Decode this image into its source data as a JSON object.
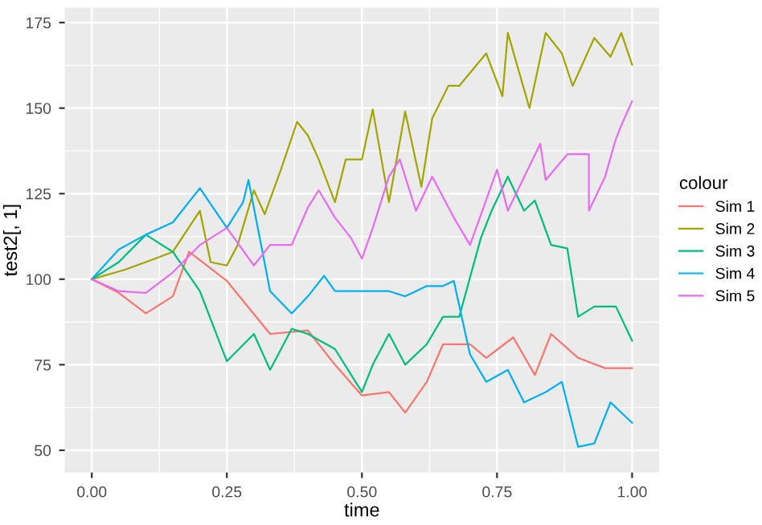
{
  "chart_data": {
    "type": "line",
    "xlabel": "time",
    "ylabel": "test2[, 1]",
    "legend_title": "colour",
    "legend": "right",
    "grid": true,
    "xlim": [
      -0.05,
      1.05
    ],
    "xticks": [
      {
        "value": 0,
        "label": "0.00"
      },
      {
        "value": 0.25,
        "label": "0.25"
      },
      {
        "value": 0.5,
        "label": "0.50"
      },
      {
        "value": 0.75,
        "label": "0.75"
      },
      {
        "value": 1,
        "label": "1.00"
      }
    ],
    "ylim": [
      43.5,
      179.3
    ],
    "yticks": [
      50,
      75,
      100,
      125,
      150,
      175
    ],
    "series": [
      {
        "name": "Sim 1",
        "color": "#f8766d",
        "x": [
          0,
          0.05,
          0.1,
          0.15,
          0.18,
          0.25,
          0.33,
          0.4,
          0.45,
          0.5,
          0.55,
          0.58,
          0.62,
          0.65,
          0.7,
          0.73,
          0.78,
          0.82,
          0.85,
          0.9,
          0.95,
          1.0
        ],
        "values": [
          100,
          96,
          90,
          95,
          108,
          99.5,
          84,
          85,
          75,
          66,
          67,
          61,
          70,
          81,
          81,
          77,
          83,
          72,
          84,
          77,
          74,
          74
        ]
      },
      {
        "name": "Sim 2",
        "color": "#a3a500",
        "x": [
          0,
          0.06,
          0.1,
          0.15,
          0.2,
          0.22,
          0.25,
          0.27,
          0.3,
          0.32,
          0.35,
          0.38,
          0.4,
          0.42,
          0.45,
          0.47,
          0.5,
          0.52,
          0.55,
          0.58,
          0.61,
          0.63,
          0.66,
          0.68,
          0.73,
          0.76,
          0.77,
          0.81,
          0.84,
          0.87,
          0.89,
          0.93,
          0.96,
          0.98,
          1.0
        ],
        "values": [
          100,
          102.7,
          105,
          108,
          120,
          105,
          104,
          110,
          126,
          119,
          132,
          146,
          142,
          135,
          122.5,
          135,
          135,
          149.6,
          122.5,
          149,
          127,
          147,
          156.5,
          156.5,
          166,
          153.5,
          172,
          150,
          172,
          166,
          156.5,
          170.5,
          165,
          172,
          162.7
        ]
      },
      {
        "name": "Sim 3",
        "color": "#00bf7d",
        "x": [
          0,
          0.05,
          0.1,
          0.15,
          0.2,
          0.25,
          0.3,
          0.33,
          0.37,
          0.4,
          0.45,
          0.5,
          0.52,
          0.55,
          0.58,
          0.62,
          0.65,
          0.68,
          0.72,
          0.74,
          0.77,
          0.8,
          0.82,
          0.85,
          0.88,
          0.9,
          0.93,
          0.97,
          1.0
        ],
        "values": [
          100,
          105,
          113,
          108,
          96.5,
          76,
          84,
          73.5,
          85.5,
          84,
          79.6,
          67,
          75,
          84,
          75,
          81,
          89,
          89,
          112,
          120,
          130,
          120,
          123,
          110,
          109,
          89,
          92,
          92,
          82
        ]
      },
      {
        "name": "Sim 4",
        "color": "#00b0f6",
        "x": [
          0,
          0.05,
          0.1,
          0.15,
          0.2,
          0.25,
          0.28,
          0.29,
          0.33,
          0.37,
          0.4,
          0.43,
          0.45,
          0.5,
          0.55,
          0.58,
          0.62,
          0.65,
          0.67,
          0.7,
          0.73,
          0.77,
          0.8,
          0.84,
          0.87,
          0.9,
          0.93,
          0.96,
          1.0
        ],
        "values": [
          100,
          108.7,
          113,
          116.6,
          126.6,
          115,
          122.5,
          129,
          96.5,
          90,
          95,
          101,
          96.5,
          96.5,
          96.5,
          95,
          98,
          98,
          99.5,
          78,
          70,
          73.5,
          64,
          67,
          70,
          51,
          52,
          64,
          58
        ]
      },
      {
        "name": "Sim 5",
        "color": "#e76bf3",
        "x": [
          0,
          0.05,
          0.1,
          0.15,
          0.2,
          0.25,
          0.3,
          0.33,
          0.37,
          0.4,
          0.42,
          0.45,
          0.48,
          0.5,
          0.52,
          0.55,
          0.57,
          0.6,
          0.63,
          0.67,
          0.7,
          0.75,
          0.77,
          0.83,
          0.84,
          0.88,
          0.92,
          0.92,
          0.95,
          0.97,
          0.98,
          1.0
        ],
        "values": [
          100,
          96.5,
          96,
          102,
          110,
          115,
          104,
          110,
          110,
          121,
          126,
          118,
          112,
          106,
          115,
          130,
          135,
          120,
          130,
          118,
          110,
          132,
          120,
          139.6,
          129,
          136.5,
          136.5,
          120,
          130,
          141,
          145,
          152
        ]
      }
    ]
  }
}
